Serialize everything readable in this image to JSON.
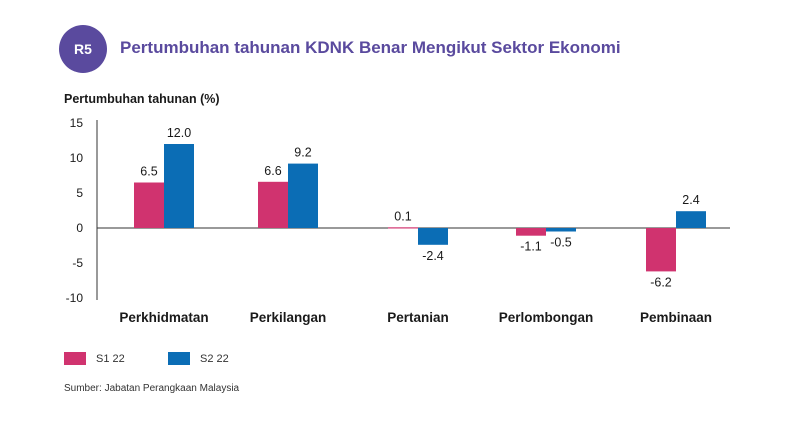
{
  "header": {
    "badge": "R5",
    "title": "Pertumbuhan tahunan KDNK Benar Mengikut Sektor Ekonomi"
  },
  "colors": {
    "s1": "#d0336f",
    "s2": "#0b6db5",
    "accent": "#5a4a9e"
  },
  "chart_data": {
    "type": "bar",
    "title": "Pertumbuhan tahunan KDNK Benar Mengikut Sektor Ekonomi",
    "ylabel": "Pertumbuhan tahunan (%)",
    "xlabel": "",
    "ylim": [
      -10,
      15
    ],
    "yticks": [
      15,
      10,
      5,
      0,
      -5,
      -10
    ],
    "grid": false,
    "legend_position": "bottom-left",
    "categories": [
      "Perkhidmatan",
      "Perkilangan",
      "Pertanian",
      "Perlombongan",
      "Pembinaan"
    ],
    "series": [
      {
        "name": "S1 22",
        "values": [
          6.5,
          6.6,
          0.1,
          -1.1,
          -6.2
        ],
        "labels": [
          "6.5",
          "6.6",
          "0.1",
          "-1.1",
          "-6.2"
        ]
      },
      {
        "name": "S2 22",
        "values": [
          12.0,
          9.2,
          -2.4,
          -0.5,
          2.4
        ],
        "labels": [
          "12.0",
          "9.2",
          "-2.4",
          "-0.5",
          "2.4"
        ]
      }
    ]
  },
  "footer": {
    "source": "Sumber: Jabatan Perangkaan Malaysia"
  }
}
